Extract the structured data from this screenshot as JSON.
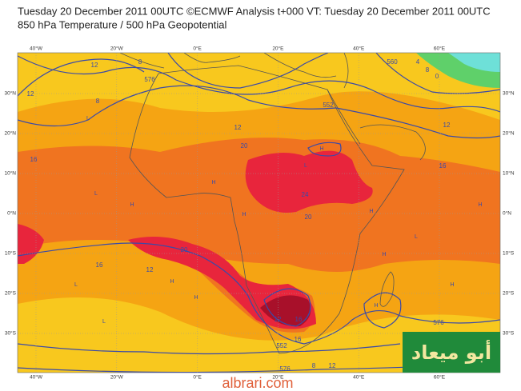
{
  "header": {
    "title": "Tuesday 20 December 2011 00UTC ©ECMWF Analysis t+000 VT: Tuesday 20 December 2011 00UTC",
    "subtitle": "850 hPa Temperature / 500 hPa Geopotential"
  },
  "map": {
    "lon_labels": [
      "40°W",
      "20°W",
      "0°E",
      "20°E",
      "40°E",
      "60°E"
    ],
    "lat_labels": [
      "30°N",
      "20°N",
      "10°N",
      "0°N",
      "10°S",
      "20°S",
      "30°S"
    ],
    "contour_labels": [
      "12",
      "8",
      "576",
      "552",
      "12",
      "8",
      "12",
      "16",
      "20",
      "24",
      "20",
      "16",
      "20",
      "12",
      "16",
      "552",
      "576",
      "8",
      "12",
      "16",
      "12",
      "560",
      "8",
      "16",
      "576",
      "4",
      "0",
      "12"
    ],
    "pressure_labels": [
      "H",
      "L",
      "L",
      "H",
      "H",
      "H",
      "H",
      "L",
      "H",
      "L",
      "H",
      "H",
      "L",
      "H",
      "H",
      "L",
      "H"
    ]
  },
  "watermark": {
    "logo": "أبو ميعاد",
    "site": "albrari.com"
  }
}
